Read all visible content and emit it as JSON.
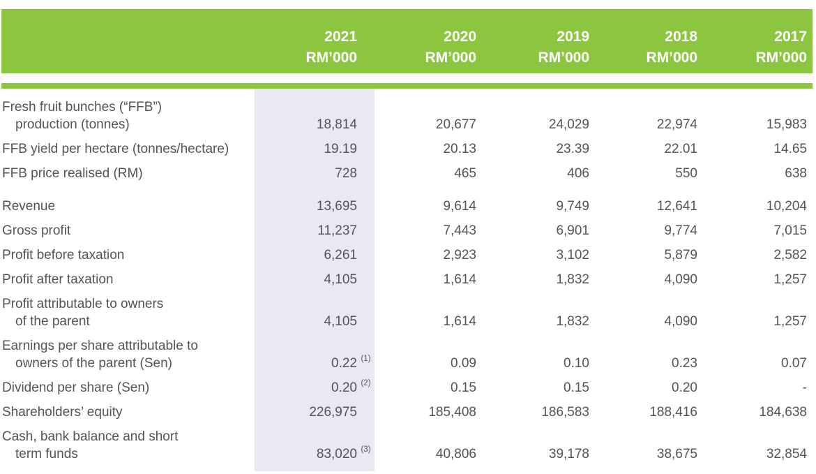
{
  "colors": {
    "green": "#8CC63F",
    "highlight": "#E8E9F3",
    "text": "#545457",
    "header_text": "#FFFFFF"
  },
  "header": {
    "columns": [
      {
        "year": "2021",
        "unit": "RM’000"
      },
      {
        "year": "2020",
        "unit": "RM’000"
      },
      {
        "year": "2019",
        "unit": "RM’000"
      },
      {
        "year": "2018",
        "unit": "RM’000"
      },
      {
        "year": "2017",
        "unit": "RM’000"
      }
    ]
  },
  "table": {
    "highlighted_column_year": "2021",
    "rows": [
      {
        "label_line1": "Fresh fruit bunches (“FFB”)",
        "label_line2": "production (tonnes)",
        "values": [
          "18,814",
          "20,677",
          "24,029",
          "22,974",
          "15,983"
        ],
        "note": ""
      },
      {
        "label_line1": "FFB yield per hectare (tonnes/hectare)",
        "label_line2": "",
        "values": [
          "19.19",
          "20.13",
          "23.39",
          "22.01",
          "14.65"
        ],
        "note": ""
      },
      {
        "label_line1": "FFB price realised (RM)",
        "label_line2": "",
        "values": [
          "728",
          "465",
          "406",
          "550",
          "638"
        ],
        "note": "",
        "spacer_after": true
      },
      {
        "label_line1": "Revenue",
        "label_line2": "",
        "values": [
          "13,695",
          "9,614",
          "9,749",
          "12,641",
          "10,204"
        ],
        "note": ""
      },
      {
        "label_line1": "Gross profit",
        "label_line2": "",
        "values": [
          "11,237",
          "7,443",
          "6,901",
          "9,774",
          "7,015"
        ],
        "note": ""
      },
      {
        "label_line1": "Profit before taxation",
        "label_line2": "",
        "values": [
          "6,261",
          "2,923",
          "3,102",
          "5,879",
          "2,582"
        ],
        "note": ""
      },
      {
        "label_line1": "Profit after taxation",
        "label_line2": "",
        "values": [
          "4,105",
          "1,614",
          "1,832",
          "4,090",
          "1,257"
        ],
        "note": ""
      },
      {
        "label_line1": "Profit attributable to owners",
        "label_line2": "of the parent",
        "values": [
          "4,105",
          "1,614",
          "1,832",
          "4,090",
          "1,257"
        ],
        "note": ""
      },
      {
        "label_line1": "Earnings per share attributable to",
        "label_line2": "owners of the parent (Sen)",
        "values": [
          "0.22",
          "0.09",
          "0.10",
          "0.23",
          "0.07"
        ],
        "note": "(1)"
      },
      {
        "label_line1": "Dividend per share (Sen)",
        "label_line2": "",
        "values": [
          "0.20",
          "0.15",
          "0.15",
          "0.20",
          "-"
        ],
        "note": "(2)"
      },
      {
        "label_line1": "Shareholders’ equity",
        "label_line2": "",
        "values": [
          "226,975",
          "185,408",
          "186,583",
          "188,416",
          "184,638"
        ],
        "note": ""
      },
      {
        "label_line1": "Cash, bank balance and short",
        "label_line2": "term funds",
        "values": [
          "83,020",
          "40,806",
          "39,178",
          "38,675",
          "32,854"
        ],
        "note": "(3)"
      }
    ]
  }
}
